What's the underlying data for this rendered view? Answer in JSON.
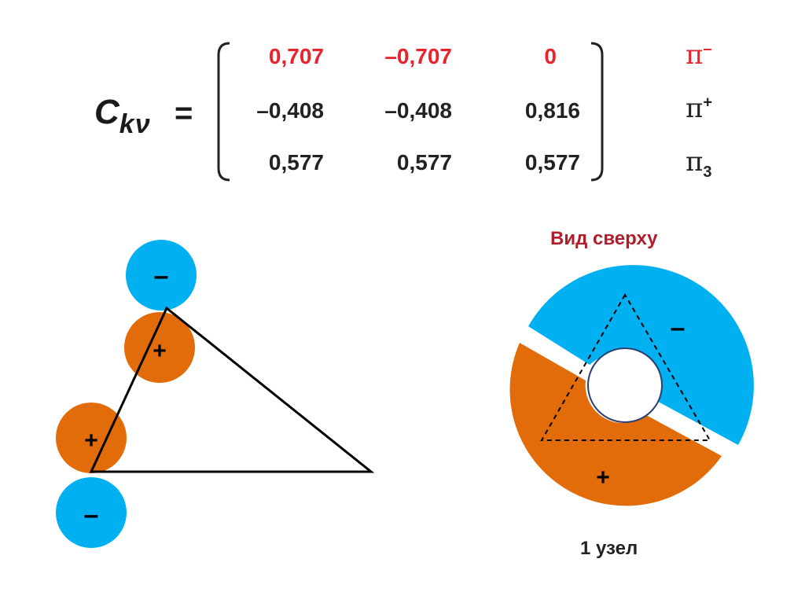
{
  "matrix": {
    "lhs_letter": "C",
    "lhs_subscript": "kν",
    "equals": "=",
    "rows": [
      {
        "cells": [
          "0,707",
          "–0,707",
          "0"
        ],
        "label": "π",
        "label_mark": "–",
        "label_mark_type": "sup",
        "highlight": true
      },
      {
        "cells": [
          "–0,408",
          "–0,408",
          "0,816"
        ],
        "label": "π",
        "label_mark": "+",
        "label_mark_type": "sup",
        "highlight": false
      },
      {
        "cells": [
          "0,577",
          "0,577",
          "0,577"
        ],
        "label": "π",
        "label_mark": "3",
        "label_mark_type": "sub",
        "highlight": false
      }
    ]
  },
  "left_diagram": {
    "signs": {
      "top_outer": "–",
      "top_inner": "+",
      "bottom_inner": "+",
      "bottom_outer": "–"
    }
  },
  "right_diagram": {
    "title": "Вид  сверху",
    "sign_blue": "–",
    "sign_orange": "+",
    "caption": "1  узел"
  },
  "colors": {
    "blue": "#00b0f0",
    "orange": "#e36c0a",
    "highlight_red": "#e8232c",
    "title_red": "#b01e2b"
  }
}
